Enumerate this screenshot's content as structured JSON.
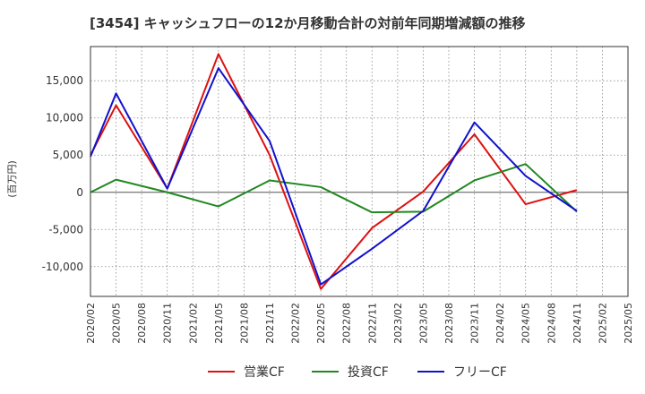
{
  "chart_data": {
    "type": "line",
    "title": "[3454]  キャッシュフローの12か月移動合計の対前年同期増減額の推移",
    "ylabel": "(百万円)",
    "xlabel": "",
    "ylim": [
      -14000,
      19600
    ],
    "y_ticks": [
      15000,
      10000,
      5000,
      0,
      -5000,
      -10000
    ],
    "y_tick_labels": [
      "15,000",
      "10,000",
      "5,000",
      "0",
      "-5,000",
      "-10,000"
    ],
    "x_ticks": [
      "2020/02",
      "2020/05",
      "2020/08",
      "2020/11",
      "2021/02",
      "2021/05",
      "2021/08",
      "2021/11",
      "2022/02",
      "2022/05",
      "2022/08",
      "2022/11",
      "2023/02",
      "2023/05",
      "2023/08",
      "2023/11",
      "2024/02",
      "2024/05",
      "2024/08",
      "2024/11",
      "2025/02",
      "2025/05"
    ],
    "grid": true,
    "legend_position": "bottom",
    "series": [
      {
        "name": "営業CF",
        "color": "#dd1111",
        "points": [
          {
            "x": "2020/02",
            "y": 5000
          },
          {
            "x": "2020/05",
            "y": 11700
          },
          {
            "x": "2020/11",
            "y": 500
          },
          {
            "x": "2021/05",
            "y": 18600
          },
          {
            "x": "2021/11",
            "y": 5000
          },
          {
            "x": "2022/05",
            "y": -13000
          },
          {
            "x": "2022/11",
            "y": -4800
          },
          {
            "x": "2023/05",
            "y": 100
          },
          {
            "x": "2023/11",
            "y": 7800
          },
          {
            "x": "2024/05",
            "y": -1600
          },
          {
            "x": "2024/11",
            "y": 300
          }
        ]
      },
      {
        "name": "投資CF",
        "color": "#228822",
        "points": [
          {
            "x": "2020/02",
            "y": 0
          },
          {
            "x": "2020/05",
            "y": 1700
          },
          {
            "x": "2020/11",
            "y": 0
          },
          {
            "x": "2021/05",
            "y": -1900
          },
          {
            "x": "2021/11",
            "y": 1600
          },
          {
            "x": "2022/05",
            "y": 700
          },
          {
            "x": "2022/11",
            "y": -2700
          },
          {
            "x": "2023/05",
            "y": -2600
          },
          {
            "x": "2023/11",
            "y": 1600
          },
          {
            "x": "2024/05",
            "y": 3800
          },
          {
            "x": "2024/11",
            "y": -2600
          }
        ]
      },
      {
        "name": "フリーCF",
        "color": "#1111cc",
        "points": [
          {
            "x": "2020/02",
            "y": 4800
          },
          {
            "x": "2020/05",
            "y": 13300
          },
          {
            "x": "2020/11",
            "y": 500
          },
          {
            "x": "2021/05",
            "y": 16700
          },
          {
            "x": "2021/11",
            "y": 6900
          },
          {
            "x": "2022/05",
            "y": -12400
          },
          {
            "x": "2022/11",
            "y": -7600
          },
          {
            "x": "2023/05",
            "y": -2500
          },
          {
            "x": "2023/11",
            "y": 9400
          },
          {
            "x": "2024/05",
            "y": 2200
          },
          {
            "x": "2024/11",
            "y": -2500
          }
        ]
      }
    ]
  }
}
